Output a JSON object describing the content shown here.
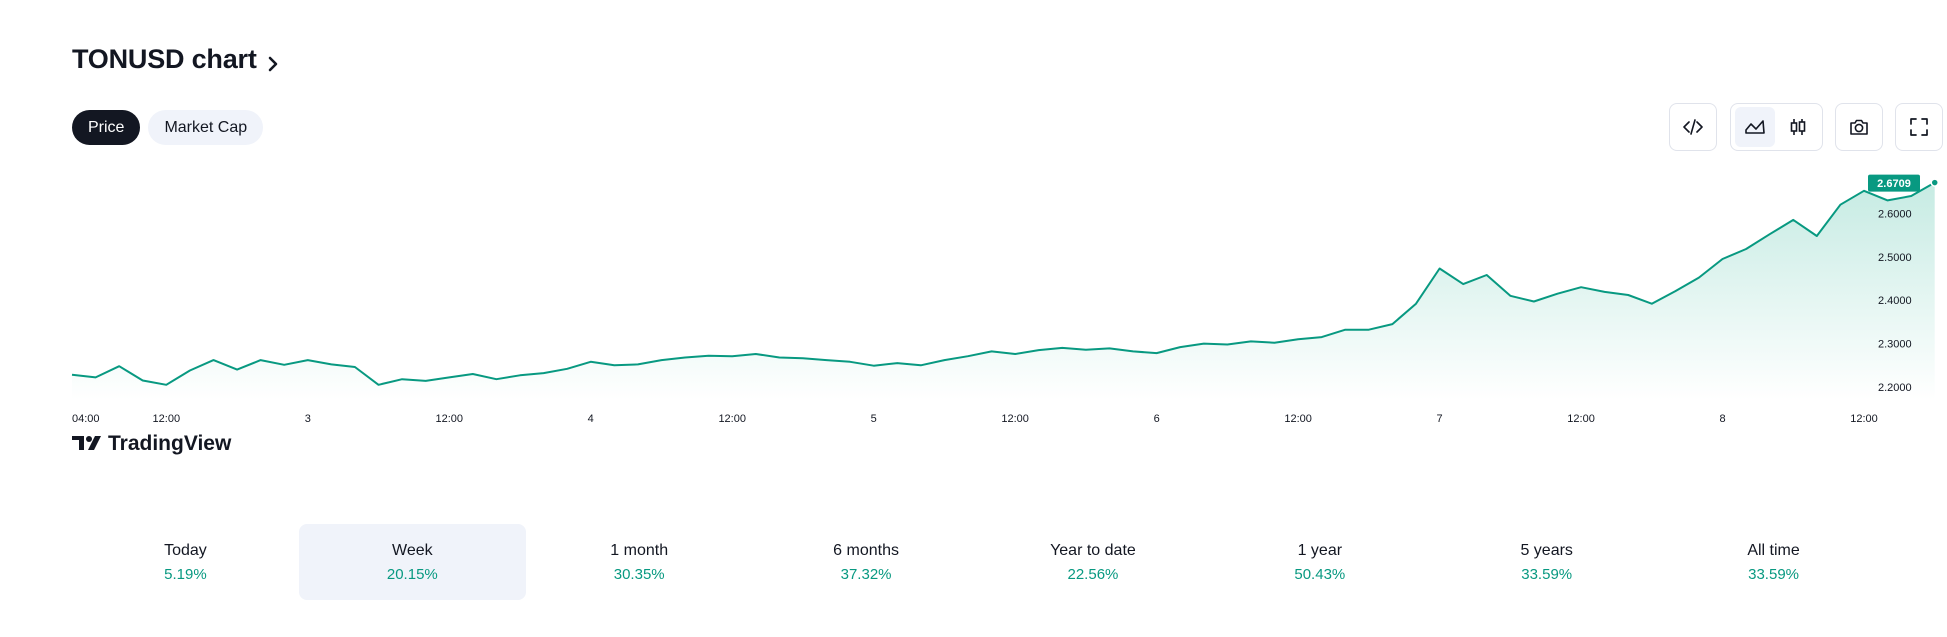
{
  "header": {
    "title": "TONUSD chart"
  },
  "tabs": [
    {
      "label": "Price",
      "active": true
    },
    {
      "label": "Market Cap",
      "active": false
    }
  ],
  "toolbar": {
    "embed_icon": "code-icon",
    "area_icon": "area-chart-icon",
    "candles_icon": "candlestick-icon",
    "snapshot_icon": "camera-icon",
    "fullscreen_icon": "fullscreen-icon",
    "selected_style": "area"
  },
  "watermark": {
    "brand": "TradingView"
  },
  "chart_data": {
    "type": "area",
    "series": [
      {
        "symbol": "TONUSD",
        "last_value": "2.6709"
      }
    ],
    "x_tick_labels": [
      "04:00",
      "12:00",
      "3",
      "12:00",
      "4",
      "12:00",
      "5",
      "12:00",
      "6",
      "12:00",
      "7",
      "12:00",
      "8",
      "12:00"
    ],
    "y_tick_labels": [
      "2.6000",
      "2.5000",
      "2.4000",
      "2.3000",
      "2.2000"
    ],
    "ylim": [
      2.17,
      2.7
    ],
    "x_start": "2 04:00",
    "x_end": "8 12:00",
    "points": [
      [
        "2 04:00",
        2.228
      ],
      [
        "2 06:00",
        2.222
      ],
      [
        "2 08:00",
        2.248
      ],
      [
        "2 10:00",
        2.215
      ],
      [
        "2 12:00",
        2.205
      ],
      [
        "2 14:00",
        2.238
      ],
      [
        "2 16:00",
        2.262
      ],
      [
        "2 18:00",
        2.24
      ],
      [
        "2 20:00",
        2.262
      ],
      [
        "2 22:00",
        2.251
      ],
      [
        "3 00:00",
        2.262
      ],
      [
        "3 02:00",
        2.252
      ],
      [
        "3 04:00",
        2.246
      ],
      [
        "3 06:00",
        2.205
      ],
      [
        "3 08:00",
        2.218
      ],
      [
        "3 10:00",
        2.214
      ],
      [
        "3 12:00",
        2.222
      ],
      [
        "3 14:00",
        2.23
      ],
      [
        "3 16:00",
        2.218
      ],
      [
        "3 18:00",
        2.227
      ],
      [
        "3 20:00",
        2.232
      ],
      [
        "3 22:00",
        2.242
      ],
      [
        "4 00:00",
        2.258
      ],
      [
        "4 02:00",
        2.25
      ],
      [
        "4 04:00",
        2.252
      ],
      [
        "4 06:00",
        2.262
      ],
      [
        "4 08:00",
        2.268
      ],
      [
        "4 10:00",
        2.272
      ],
      [
        "4 12:00",
        2.271
      ],
      [
        "4 14:00",
        2.276
      ],
      [
        "4 16:00",
        2.268
      ],
      [
        "4 18:00",
        2.266
      ],
      [
        "4 20:00",
        2.262
      ],
      [
        "4 22:00",
        2.258
      ],
      [
        "5 00:00",
        2.249
      ],
      [
        "5 02:00",
        2.255
      ],
      [
        "5 04:00",
        2.25
      ],
      [
        "5 06:00",
        2.262
      ],
      [
        "5 08:00",
        2.271
      ],
      [
        "5 10:00",
        2.282
      ],
      [
        "5 12:00",
        2.276
      ],
      [
        "5 14:00",
        2.285
      ],
      [
        "5 16:00",
        2.29
      ],
      [
        "5 18:00",
        2.286
      ],
      [
        "5 20:00",
        2.289
      ],
      [
        "5 22:00",
        2.282
      ],
      [
        "6 00:00",
        2.278
      ],
      [
        "6 02:00",
        2.292
      ],
      [
        "6 04:00",
        2.3
      ],
      [
        "6 06:00",
        2.298
      ],
      [
        "6 08:00",
        2.305
      ],
      [
        "6 10:00",
        2.302
      ],
      [
        "6 12:00",
        2.31
      ],
      [
        "6 14:00",
        2.315
      ],
      [
        "6 16:00",
        2.332
      ],
      [
        "6 18:00",
        2.332
      ],
      [
        "6 20:00",
        2.345
      ],
      [
        "6 22:00",
        2.392
      ],
      [
        "7 00:00",
        2.473
      ],
      [
        "7 02:00",
        2.437
      ],
      [
        "7 04:00",
        2.458
      ],
      [
        "7 06:00",
        2.41
      ],
      [
        "7 08:00",
        2.397
      ],
      [
        "7 10:00",
        2.415
      ],
      [
        "7 12:00",
        2.43
      ],
      [
        "7 14:00",
        2.419
      ],
      [
        "7 16:00",
        2.412
      ],
      [
        "7 18:00",
        2.392
      ],
      [
        "7 20:00",
        2.421
      ],
      [
        "7 22:00",
        2.452
      ],
      [
        "8 00:00",
        2.495
      ],
      [
        "8 02:00",
        2.518
      ],
      [
        "8 04:00",
        2.552
      ],
      [
        "8 06:00",
        2.585
      ],
      [
        "8 08:00",
        2.548
      ],
      [
        "8 10:00",
        2.62
      ],
      [
        "8 12:00",
        2.652
      ],
      [
        "8 14:00",
        2.63
      ],
      [
        "8 16:00",
        2.64
      ],
      [
        "8 18:00",
        2.671
      ]
    ],
    "colors": {
      "line": "#089981",
      "fill_top": "#c6ebe3",
      "fill_bottom": "#ffffff",
      "label_bg": "#089981"
    }
  },
  "periods": [
    {
      "label": "Today",
      "value": "5.19%",
      "selected": false
    },
    {
      "label": "Week",
      "value": "20.15%",
      "selected": true
    },
    {
      "label": "1 month",
      "value": "30.35%",
      "selected": false
    },
    {
      "label": "6 months",
      "value": "37.32%",
      "selected": false
    },
    {
      "label": "Year to date",
      "value": "22.56%",
      "selected": false
    },
    {
      "label": "1 year",
      "value": "50.43%",
      "selected": false
    },
    {
      "label": "5 years",
      "value": "33.59%",
      "selected": false
    },
    {
      "label": "All time",
      "value": "33.59%",
      "selected": false
    }
  ]
}
